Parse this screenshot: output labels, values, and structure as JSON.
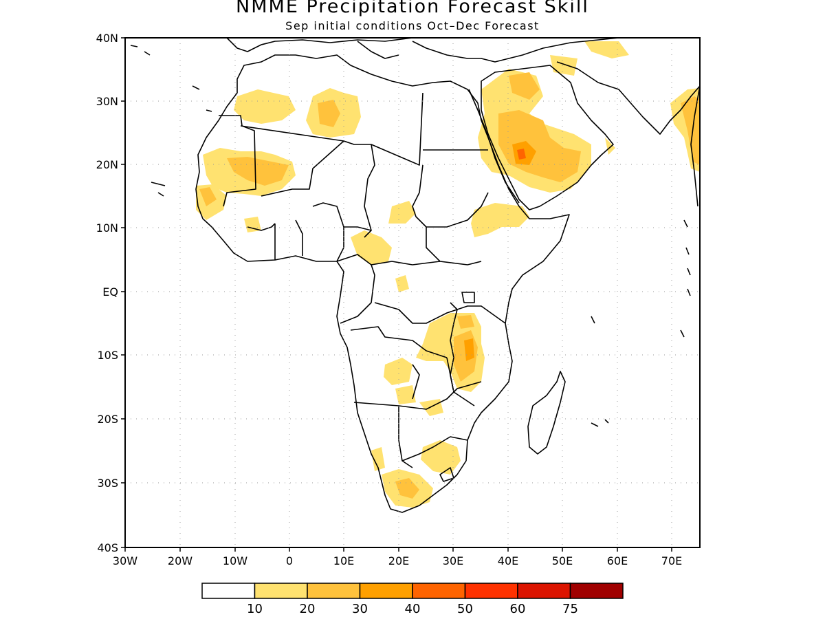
{
  "title": "NMME Precipitation Forecast Skill",
  "subtitle": "Sep initial conditions  Oct–Dec Forecast",
  "map": {
    "lon_range": [
      -30,
      75
    ],
    "lat_range": [
      -40,
      40
    ],
    "lat_labels": [
      "40N",
      "30N",
      "20N",
      "10N",
      "EQ",
      "10S",
      "20S",
      "30S",
      "40S"
    ],
    "lon_labels": [
      "30W",
      "20W",
      "10W",
      "0",
      "10E",
      "20E",
      "30E",
      "40E",
      "50E",
      "60E",
      "70E"
    ],
    "grid": true
  },
  "colorbar": {
    "colors": [
      "#ffffff",
      "#ffe270",
      "#ffc23c",
      "#ffa000",
      "#ff6400",
      "#ff3200",
      "#dc1400",
      "#a00000"
    ],
    "labels": [
      "10",
      "20",
      "30",
      "40",
      "50",
      "60",
      "75"
    ]
  }
}
